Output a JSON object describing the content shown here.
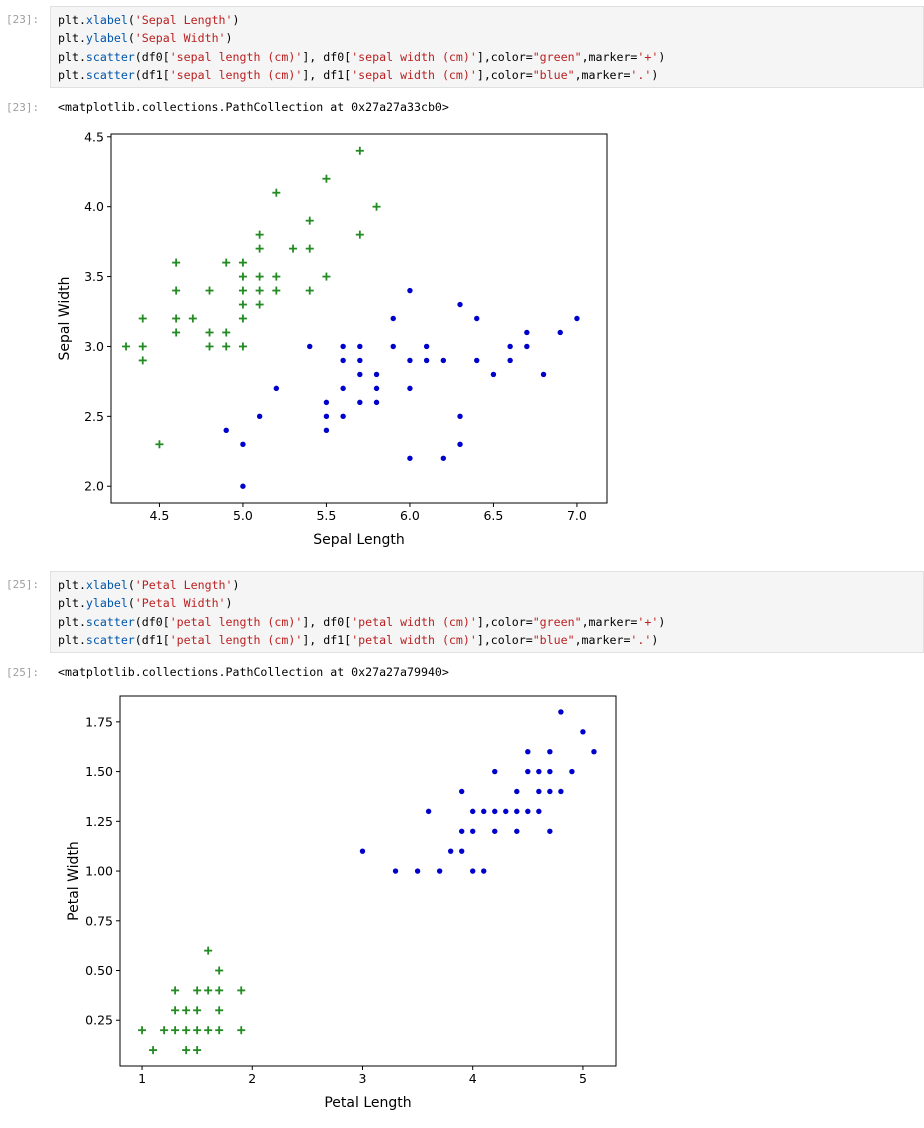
{
  "cells": [
    {
      "in_prompt": "[23]:",
      "code_lines": [
        [
          [
            "plt.",
            "mod"
          ],
          [
            "xlabel",
            "fn"
          ],
          [
            "(",
            "plain"
          ],
          [
            "'Sepal Length'",
            "str"
          ],
          [
            ")",
            "plain"
          ]
        ],
        [
          [
            "plt.",
            "mod"
          ],
          [
            "ylabel",
            "fn"
          ],
          [
            "(",
            "plain"
          ],
          [
            "'Sepal Width'",
            "str"
          ],
          [
            ")",
            "plain"
          ]
        ],
        [
          [
            "plt.",
            "mod"
          ],
          [
            "scatter",
            "fn"
          ],
          [
            "(df0[",
            "plain"
          ],
          [
            "'sepal length (cm)'",
            "str"
          ],
          [
            "], df0[",
            "plain"
          ],
          [
            "'sepal width (cm)'",
            "str"
          ],
          [
            "],color=",
            "plain"
          ],
          [
            "\"green\"",
            "str"
          ],
          [
            ",marker=",
            "plain"
          ],
          [
            "'+'",
            "str"
          ],
          [
            ")",
            "plain"
          ]
        ],
        [
          [
            "plt.",
            "mod"
          ],
          [
            "scatter",
            "fn"
          ],
          [
            "(df1[",
            "plain"
          ],
          [
            "'sepal length (cm)'",
            "str"
          ],
          [
            "], df1[",
            "plain"
          ],
          [
            "'sepal width (cm)'",
            "str"
          ],
          [
            "],color=",
            "plain"
          ],
          [
            "\"blue\"",
            "str"
          ],
          [
            ",marker=",
            "plain"
          ],
          [
            "'.'",
            "str"
          ],
          [
            ")",
            "plain"
          ]
        ]
      ],
      "out_prompt": "[23]:",
      "output_text": "<matplotlib.collections.PathCollection at 0x27a27a33cb0>"
    },
    {
      "in_prompt": "[25]:",
      "code_lines": [
        [
          [
            "plt.",
            "mod"
          ],
          [
            "xlabel",
            "fn"
          ],
          [
            "(",
            "plain"
          ],
          [
            "'Petal Length'",
            "str"
          ],
          [
            ")",
            "plain"
          ]
        ],
        [
          [
            "plt.",
            "mod"
          ],
          [
            "ylabel",
            "fn"
          ],
          [
            "(",
            "plain"
          ],
          [
            "'Petal Width'",
            "str"
          ],
          [
            ")",
            "plain"
          ]
        ],
        [
          [
            "plt.",
            "mod"
          ],
          [
            "scatter",
            "fn"
          ],
          [
            "(df0[",
            "plain"
          ],
          [
            "'petal length (cm)'",
            "str"
          ],
          [
            "], df0[",
            "plain"
          ],
          [
            "'petal width (cm)'",
            "str"
          ],
          [
            "],color=",
            "plain"
          ],
          [
            "\"green\"",
            "str"
          ],
          [
            ",marker=",
            "plain"
          ],
          [
            "'+'",
            "str"
          ],
          [
            ")",
            "plain"
          ]
        ],
        [
          [
            "plt.",
            "mod"
          ],
          [
            "scatter",
            "fn"
          ],
          [
            "(df1[",
            "plain"
          ],
          [
            "'petal length (cm)'",
            "str"
          ],
          [
            "], df1[",
            "plain"
          ],
          [
            "'petal width (cm)'",
            "str"
          ],
          [
            "],color=",
            "plain"
          ],
          [
            "\"blue\"",
            "str"
          ],
          [
            ",marker=",
            "plain"
          ],
          [
            "'.'",
            "str"
          ],
          [
            ")",
            "plain"
          ]
        ]
      ],
      "out_prompt": "[25]:",
      "output_text": "<matplotlib.collections.PathCollection at 0x27a27a79940>"
    }
  ],
  "chart_data": [
    {
      "type": "scatter",
      "xlabel": "Sepal Length",
      "ylabel": "Sepal Width",
      "xlim": [
        4.21,
        7.18
      ],
      "ylim": [
        1.88,
        4.52
      ],
      "xticks": [
        4.5,
        5.0,
        5.5,
        6.0,
        6.5,
        7.0
      ],
      "xtick_labels": [
        "4.5",
        "5.0",
        "5.5",
        "6.0",
        "6.5",
        "7.0"
      ],
      "yticks": [
        2.0,
        2.5,
        3.0,
        3.5,
        4.0,
        4.5
      ],
      "ytick_labels": [
        "2.0",
        "2.5",
        "3.0",
        "3.5",
        "4.0",
        "4.5"
      ],
      "series": [
        {
          "color": "#228b22",
          "marker": "+",
          "x": [
            5.7,
            5.5,
            5.2,
            5.8,
            5.4,
            5.1,
            5.7,
            5.1,
            5.3,
            5.4,
            4.6,
            4.9,
            5.0,
            5.0,
            5.1,
            5.2,
            4.6,
            4.8,
            5.0,
            5.1,
            5.2,
            5.4,
            5.0,
            5.1,
            5.5,
            4.4,
            4.6,
            4.7,
            5.0,
            4.6,
            4.8,
            4.9,
            4.3,
            4.4,
            4.8,
            4.9,
            5.0,
            4.4,
            4.5
          ],
          "y": [
            4.4,
            4.2,
            4.1,
            4.0,
            3.9,
            3.8,
            3.8,
            3.7,
            3.7,
            3.7,
            3.6,
            3.6,
            3.6,
            3.5,
            3.5,
            3.5,
            3.4,
            3.4,
            3.4,
            3.4,
            3.4,
            3.4,
            3.3,
            3.3,
            3.5,
            3.2,
            3.2,
            3.2,
            3.2,
            3.1,
            3.1,
            3.1,
            3.0,
            3.0,
            3.0,
            3.0,
            3.0,
            2.9,
            2.3
          ]
        },
        {
          "color": "#0000cc",
          "marker": ".",
          "x": [
            6.0,
            6.3,
            5.9,
            6.4,
            7.0,
            6.7,
            6.9,
            5.4,
            5.6,
            5.7,
            5.9,
            6.1,
            6.6,
            6.7,
            5.6,
            5.7,
            6.0,
            6.1,
            6.2,
            6.4,
            6.6,
            5.7,
            5.8,
            6.5,
            6.8,
            5.6,
            5.2,
            5.8,
            6.0,
            5.5,
            5.7,
            5.8,
            5.1,
            5.5,
            5.6,
            6.3,
            4.9,
            5.5,
            5.0,
            6.3,
            6.0,
            6.2,
            5.0
          ],
          "y": [
            3.4,
            3.3,
            3.2,
            3.2,
            3.2,
            3.1,
            3.1,
            3.0,
            3.0,
            3.0,
            3.0,
            3.0,
            3.0,
            3.0,
            2.9,
            2.9,
            2.9,
            2.9,
            2.9,
            2.9,
            2.9,
            2.8,
            2.8,
            2.8,
            2.8,
            2.7,
            2.7,
            2.7,
            2.7,
            2.6,
            2.6,
            2.6,
            2.5,
            2.5,
            2.5,
            2.5,
            2.4,
            2.4,
            2.3,
            2.3,
            2.2,
            2.2,
            2.0
          ]
        }
      ]
    },
    {
      "type": "scatter",
      "xlabel": "Petal Length",
      "ylabel": "Petal Width",
      "xlim": [
        0.8,
        5.3
      ],
      "ylim": [
        0.02,
        1.88
      ],
      "xticks": [
        1,
        2,
        3,
        4,
        5
      ],
      "xtick_labels": [
        "1",
        "2",
        "3",
        "4",
        "5"
      ],
      "yticks": [
        0.25,
        0.5,
        0.75,
        1.0,
        1.25,
        1.5,
        1.75
      ],
      "ytick_labels": [
        "0.25",
        "0.50",
        "0.75",
        "1.00",
        "1.25",
        "1.50",
        "1.75"
      ],
      "series": [
        {
          "color": "#228b22",
          "marker": "+",
          "x": [
            1.6,
            1.7,
            1.3,
            1.5,
            1.6,
            1.7,
            1.9,
            1.3,
            1.4,
            1.5,
            1.7,
            1.0,
            1.2,
            1.3,
            1.4,
            1.5,
            1.6,
            1.7,
            1.9,
            1.1,
            1.4,
            1.5
          ],
          "y": [
            0.6,
            0.5,
            0.4,
            0.4,
            0.4,
            0.4,
            0.4,
            0.3,
            0.3,
            0.3,
            0.3,
            0.2,
            0.2,
            0.2,
            0.2,
            0.2,
            0.2,
            0.2,
            0.2,
            0.1,
            0.1,
            0.1
          ]
        },
        {
          "color": "#0000cc",
          "marker": ".",
          "x": [
            4.8,
            5.0,
            4.5,
            4.7,
            5.1,
            4.2,
            4.5,
            4.6,
            4.7,
            4.9,
            3.9,
            4.4,
            4.6,
            4.7,
            4.8,
            3.6,
            4.0,
            4.1,
            4.2,
            4.3,
            4.4,
            4.5,
            4.6,
            3.9,
            4.0,
            4.2,
            4.4,
            4.7,
            3.0,
            3.8,
            3.9,
            3.3,
            3.5,
            3.7,
            4.0,
            4.1
          ],
          "y": [
            1.8,
            1.7,
            1.6,
            1.6,
            1.6,
            1.5,
            1.5,
            1.5,
            1.5,
            1.5,
            1.4,
            1.4,
            1.4,
            1.4,
            1.4,
            1.3,
            1.3,
            1.3,
            1.3,
            1.3,
            1.3,
            1.3,
            1.3,
            1.2,
            1.2,
            1.2,
            1.2,
            1.2,
            1.1,
            1.1,
            1.1,
            1.0,
            1.0,
            1.0,
            1.0,
            1.0
          ]
        }
      ]
    }
  ]
}
